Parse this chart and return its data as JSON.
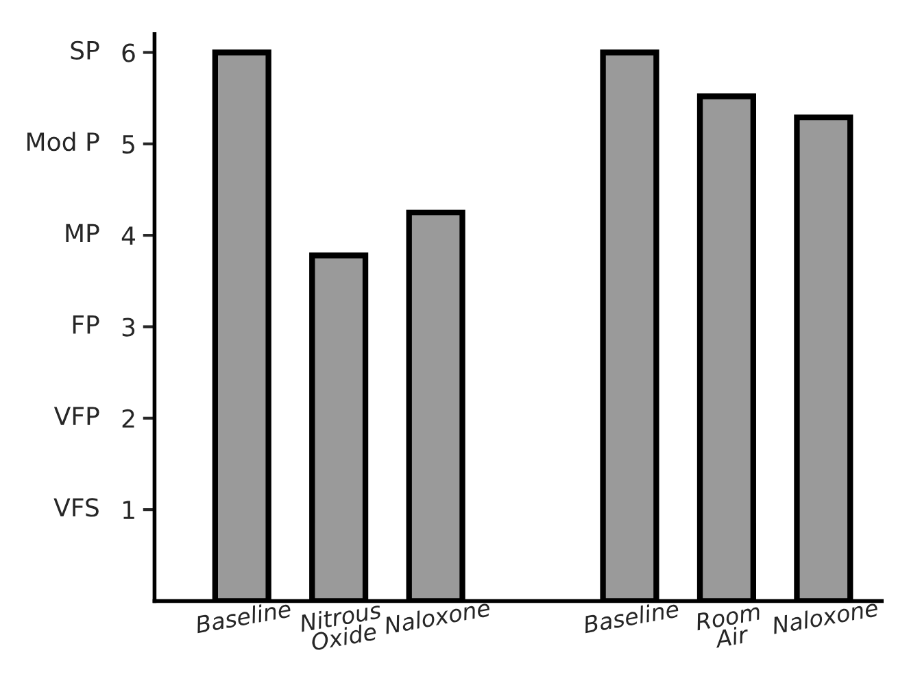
{
  "chart_data": {
    "type": "bar",
    "categories": [
      "Baseline",
      "Nitrous\nOxide",
      "Naloxone",
      null,
      "Baseline",
      "Room\nAir",
      "Naloxone"
    ],
    "values": [
      6.0,
      3.78,
      4.25,
      null,
      6.0,
      5.52,
      5.29
    ],
    "color": "#9a9a9a",
    "ylim": [
      0,
      6.2
    ],
    "yticks": [
      1,
      2,
      3,
      4,
      5,
      6
    ],
    "annotations": [
      "VFS",
      "VFP",
      "FP",
      "MP",
      "Mod P",
      "SP"
    ],
    "grid": false,
    "legend": false
  }
}
